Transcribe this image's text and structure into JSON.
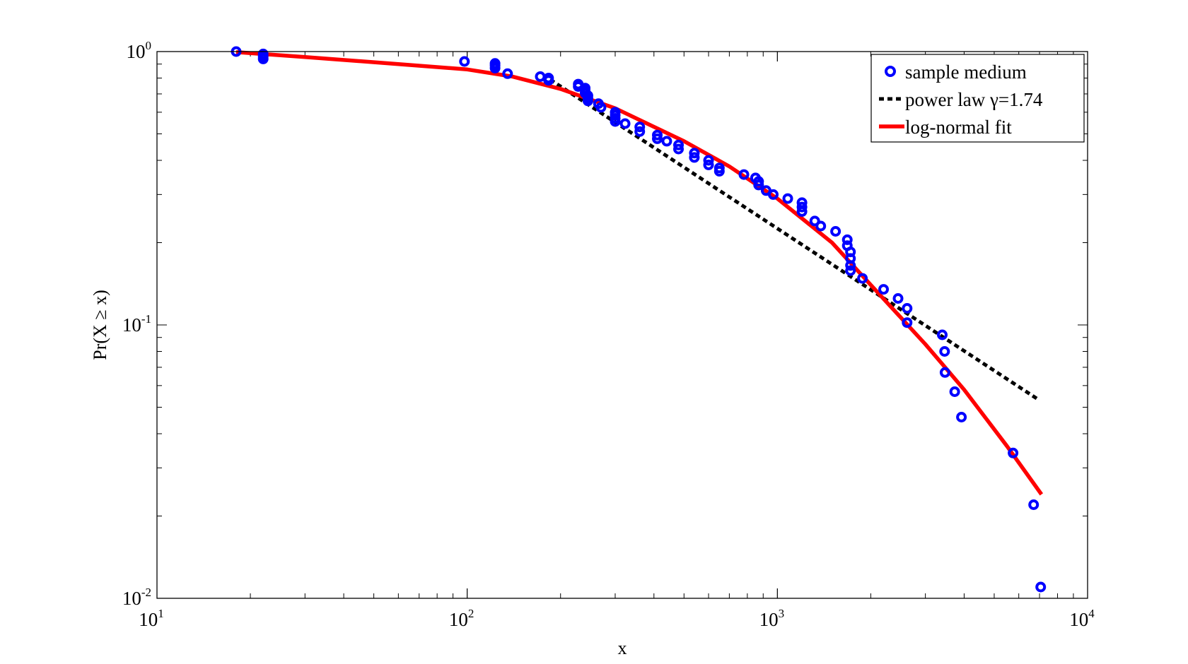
{
  "chart_data": {
    "type": "scatter",
    "x_scale": "log",
    "y_scale": "log",
    "xlabel": "x",
    "ylabel": "Pr(X ≥ x)",
    "xlim": [
      10,
      10000
    ],
    "ylim": [
      0.01,
      1
    ],
    "grid": false,
    "legend_position": "top-right",
    "x_ticks": [
      {
        "value": 10,
        "base": "10",
        "exp": "1"
      },
      {
        "value": 100,
        "base": "10",
        "exp": "2"
      },
      {
        "value": 1000,
        "base": "10",
        "exp": "3"
      },
      {
        "value": 10000,
        "base": "10",
        "exp": "4"
      }
    ],
    "y_ticks": [
      {
        "value": 0.01,
        "base": "10",
        "exp": "-2"
      },
      {
        "value": 0.1,
        "base": "10",
        "exp": "-1"
      },
      {
        "value": 1,
        "base": "10",
        "exp": "0"
      }
    ],
    "series": [
      {
        "name": "sample medium",
        "kind": "scatter",
        "color": "#0000ff",
        "points": [
          [
            18,
            1.0
          ],
          [
            22,
            0.98
          ],
          [
            22,
            0.96
          ],
          [
            22,
            0.94
          ],
          [
            98,
            0.92
          ],
          [
            123,
            0.905
          ],
          [
            123,
            0.89
          ],
          [
            123,
            0.87
          ],
          [
            135,
            0.83
          ],
          [
            172,
            0.81
          ],
          [
            183,
            0.8
          ],
          [
            183,
            0.785
          ],
          [
            228,
            0.76
          ],
          [
            228,
            0.745
          ],
          [
            240,
            0.735
          ],
          [
            240,
            0.72
          ],
          [
            240,
            0.705
          ],
          [
            245,
            0.69
          ],
          [
            245,
            0.675
          ],
          [
            245,
            0.66
          ],
          [
            265,
            0.645
          ],
          [
            270,
            0.625
          ],
          [
            300,
            0.6
          ],
          [
            300,
            0.585
          ],
          [
            300,
            0.57
          ],
          [
            300,
            0.555
          ],
          [
            323,
            0.545
          ],
          [
            360,
            0.53
          ],
          [
            360,
            0.51
          ],
          [
            410,
            0.495
          ],
          [
            410,
            0.48
          ],
          [
            440,
            0.47
          ],
          [
            480,
            0.455
          ],
          [
            480,
            0.44
          ],
          [
            540,
            0.425
          ],
          [
            540,
            0.41
          ],
          [
            600,
            0.4
          ],
          [
            600,
            0.385
          ],
          [
            650,
            0.375
          ],
          [
            650,
            0.365
          ],
          [
            780,
            0.355
          ],
          [
            850,
            0.345
          ],
          [
            870,
            0.335
          ],
          [
            870,
            0.325
          ],
          [
            920,
            0.31
          ],
          [
            970,
            0.3
          ],
          [
            1080,
            0.29
          ],
          [
            1200,
            0.28
          ],
          [
            1200,
            0.27
          ],
          [
            1200,
            0.26
          ],
          [
            1320,
            0.24
          ],
          [
            1380,
            0.23
          ],
          [
            1540,
            0.22
          ],
          [
            1680,
            0.205
          ],
          [
            1680,
            0.195
          ],
          [
            1720,
            0.185
          ],
          [
            1720,
            0.175
          ],
          [
            1720,
            0.165
          ],
          [
            1720,
            0.158
          ],
          [
            1880,
            0.148
          ],
          [
            2200,
            0.135
          ],
          [
            2450,
            0.125
          ],
          [
            2620,
            0.115
          ],
          [
            2620,
            0.102
          ],
          [
            3400,
            0.092
          ],
          [
            3460,
            0.08
          ],
          [
            3470,
            0.067
          ],
          [
            3730,
            0.057
          ],
          [
            3920,
            0.046
          ],
          [
            5750,
            0.034
          ],
          [
            6700,
            0.022
          ],
          [
            7060,
            0.011
          ]
        ]
      },
      {
        "name": "power law γ=1.74",
        "kind": "line",
        "style": "dashed",
        "color": "#000000",
        "points": [
          [
            185,
            0.79
          ],
          [
            7000,
            0.053
          ]
        ]
      },
      {
        "name": "log-normal fit",
        "kind": "line",
        "style": "solid",
        "color": "#ff0000",
        "points": [
          [
            18,
            0.995
          ],
          [
            30,
            0.955
          ],
          [
            60,
            0.9
          ],
          [
            100,
            0.86
          ],
          [
            140,
            0.81
          ],
          [
            200,
            0.73
          ],
          [
            300,
            0.62
          ],
          [
            500,
            0.47
          ],
          [
            700,
            0.38
          ],
          [
            1000,
            0.29
          ],
          [
            1500,
            0.2
          ],
          [
            2000,
            0.14
          ],
          [
            3000,
            0.085
          ],
          [
            4000,
            0.058
          ],
          [
            5500,
            0.036
          ],
          [
            7100,
            0.024
          ]
        ]
      }
    ],
    "legend": [
      {
        "label": "sample medium",
        "marker": "circle",
        "color": "#0000ff"
      },
      {
        "label": "power law γ=1.74",
        "marker": "dashed-line",
        "color": "#000000"
      },
      {
        "label": "log-normal fit",
        "marker": "solid-line",
        "color": "#ff0000"
      }
    ]
  }
}
